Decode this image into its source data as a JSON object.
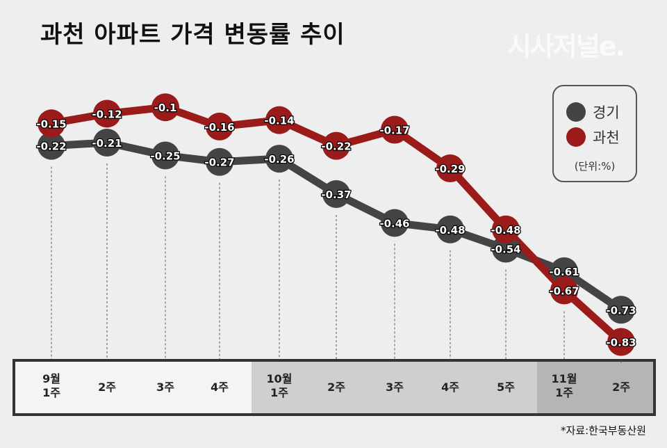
{
  "chart_data": {
    "type": "line",
    "title": "과천 아파트 가격 변동률 추이",
    "categories": [
      "9월\n1주",
      "2주",
      "3주",
      "4주",
      "10월\n1주",
      "2주",
      "3주",
      "4주",
      "5주",
      "11월\n1주",
      "2주"
    ],
    "series": [
      {
        "name": "경기",
        "color": "#444444",
        "values": [
          -0.22,
          -0.21,
          -0.25,
          -0.27,
          -0.26,
          -0.37,
          -0.46,
          -0.48,
          -0.54,
          -0.61,
          -0.73
        ]
      },
      {
        "name": "과천",
        "color": "#9b1b1b",
        "values": [
          -0.15,
          -0.12,
          -0.1,
          -0.16,
          -0.14,
          -0.22,
          -0.17,
          -0.29,
          -0.48,
          -0.67,
          -0.83
        ]
      }
    ],
    "unit": "(단위:%)",
    "legend_position": "top-right",
    "grid": false
  },
  "logo": "시사저널e.",
  "source": "*자료:한국부동산원"
}
